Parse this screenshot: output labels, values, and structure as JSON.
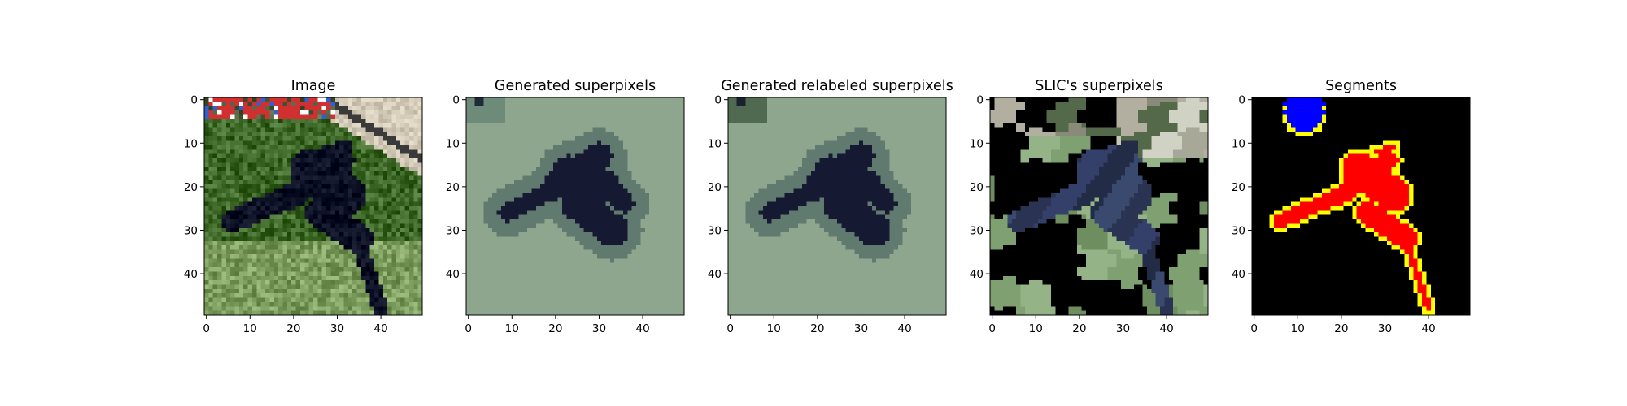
{
  "figure": {
    "background": "#ffffff",
    "axis_color": "#000000"
  },
  "chart_data": [
    {
      "type": "heatmap",
      "title": "Image",
      "content": "photo",
      "content_icon": "dog-on-grass-photo",
      "xlim": [
        -0.5,
        49.5
      ],
      "ylim": [
        49.5,
        -0.5
      ],
      "x_ticks": [
        0,
        10,
        20,
        30,
        40
      ],
      "y_ticks": [
        0,
        10,
        20,
        30,
        40
      ],
      "colors": {
        "grass": "#5f8a4a",
        "grass_light": "#9fbf80",
        "dog": "#1e2236",
        "fence": "#e8e0cc",
        "flowers": [
          "#d03030",
          "#3060d0",
          "#ffffff"
        ]
      }
    },
    {
      "type": "heatmap",
      "title": "Generated superpixels",
      "content": "generated",
      "xlim": [
        -0.5,
        49.5
      ],
      "ylim": [
        49.5,
        -0.5
      ],
      "x_ticks": [
        0,
        10,
        20,
        30,
        40
      ],
      "y_ticks": [
        0,
        10,
        20,
        30,
        40
      ],
      "colors": {
        "background": "#8ea68e",
        "halo": "#607a70",
        "object": "#151a32",
        "corner": "#6e8a78",
        "corner_mark": "#1e2a3a"
      }
    },
    {
      "type": "heatmap",
      "title": "Generated relabeled superpixels",
      "content": "generated",
      "xlim": [
        -0.5,
        49.5
      ],
      "ylim": [
        49.5,
        -0.5
      ],
      "x_ticks": [
        0,
        10,
        20,
        30,
        40
      ],
      "y_ticks": [
        0,
        10,
        20,
        30,
        40
      ],
      "colors": {
        "background": "#8ea68e",
        "halo": "#607a70",
        "object": "#151a32",
        "corner": "#4f6a50",
        "corner_mark": "#1a2030"
      }
    },
    {
      "type": "heatmap",
      "title": "SLIC's superpixels",
      "content": "slic",
      "xlim": [
        -0.5,
        49.5
      ],
      "ylim": [
        49.5,
        -0.5
      ],
      "x_ticks": [
        0,
        10,
        20,
        30,
        40
      ],
      "y_ticks": [
        0,
        10,
        20,
        30,
        40
      ],
      "colors": {
        "palette": [
          "#6e8e60",
          "#7fa070",
          "#94b488",
          "#5d7d58",
          "#88a47a",
          "#a2bc92",
          "#6a8a6c"
        ],
        "top": [
          "#54684a",
          "#8a8a7a",
          "#b2aea0",
          "#c8c6b4",
          "#a8a898",
          "#d0d2c4",
          "#bcbcae"
        ],
        "dog": [
          "#2a3452",
          "#34406a",
          "#232c46",
          "#3a4a6e"
        ]
      }
    },
    {
      "type": "heatmap",
      "title": "Segments",
      "content": "segments",
      "xlim": [
        -0.5,
        49.5
      ],
      "ylim": [
        49.5,
        -0.5
      ],
      "x_ticks": [
        0,
        10,
        20,
        30,
        40
      ],
      "y_ticks": [
        0,
        10,
        20,
        30,
        40
      ],
      "colors": {
        "background": "#000000",
        "segment_1": "#0000ff",
        "segment_2": "#ff0000",
        "boundary": "#ffff00"
      }
    }
  ]
}
